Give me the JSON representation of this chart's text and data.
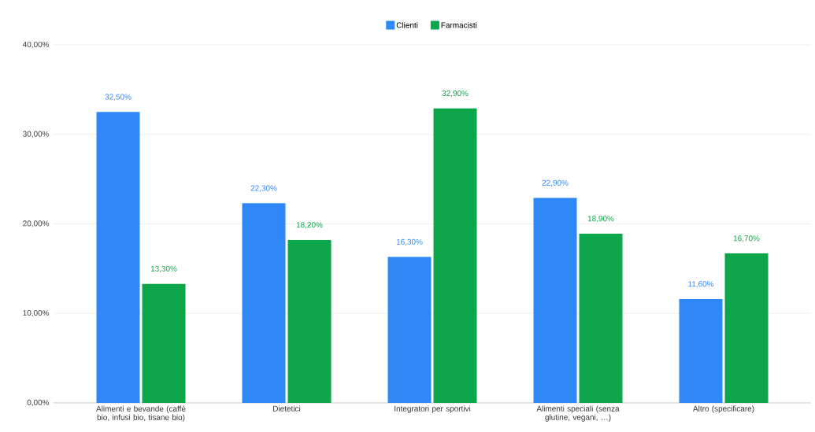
{
  "chart_data": {
    "type": "bar",
    "categories": [
      "Alimenti e bevande (caffè bio, infusi bio, tisane bio)",
      "Dietetici",
      "Integratori per sportivi",
      "Alimenti speciali (senza glutine, vegani, …)",
      "Altro (specificare)"
    ],
    "series": [
      {
        "name": "Clienti",
        "color": "#2f88f5",
        "values": [
          32.5,
          22.3,
          16.3,
          22.9,
          11.6
        ],
        "value_labels": [
          "32,50%",
          "22,30%",
          "16,30%",
          "22,90%",
          "11,60%"
        ]
      },
      {
        "name": "Farmacisti",
        "color": "#0da64a",
        "values": [
          13.3,
          18.2,
          32.9,
          18.9,
          16.7
        ],
        "value_labels": [
          "13,30%",
          "18,20%",
          "32,90%",
          "18,90%",
          "16,70%"
        ]
      }
    ],
    "ylim": [
      0,
      40
    ],
    "yticks": [
      {
        "value": 0,
        "label": "0,00%"
      },
      {
        "value": 10,
        "label": "10,00%"
      },
      {
        "value": 20,
        "label": "20,00%"
      },
      {
        "value": 30,
        "label": "30,00%"
      },
      {
        "value": 40,
        "label": "40,00%"
      }
    ],
    "grid": "y",
    "legend": "top"
  }
}
